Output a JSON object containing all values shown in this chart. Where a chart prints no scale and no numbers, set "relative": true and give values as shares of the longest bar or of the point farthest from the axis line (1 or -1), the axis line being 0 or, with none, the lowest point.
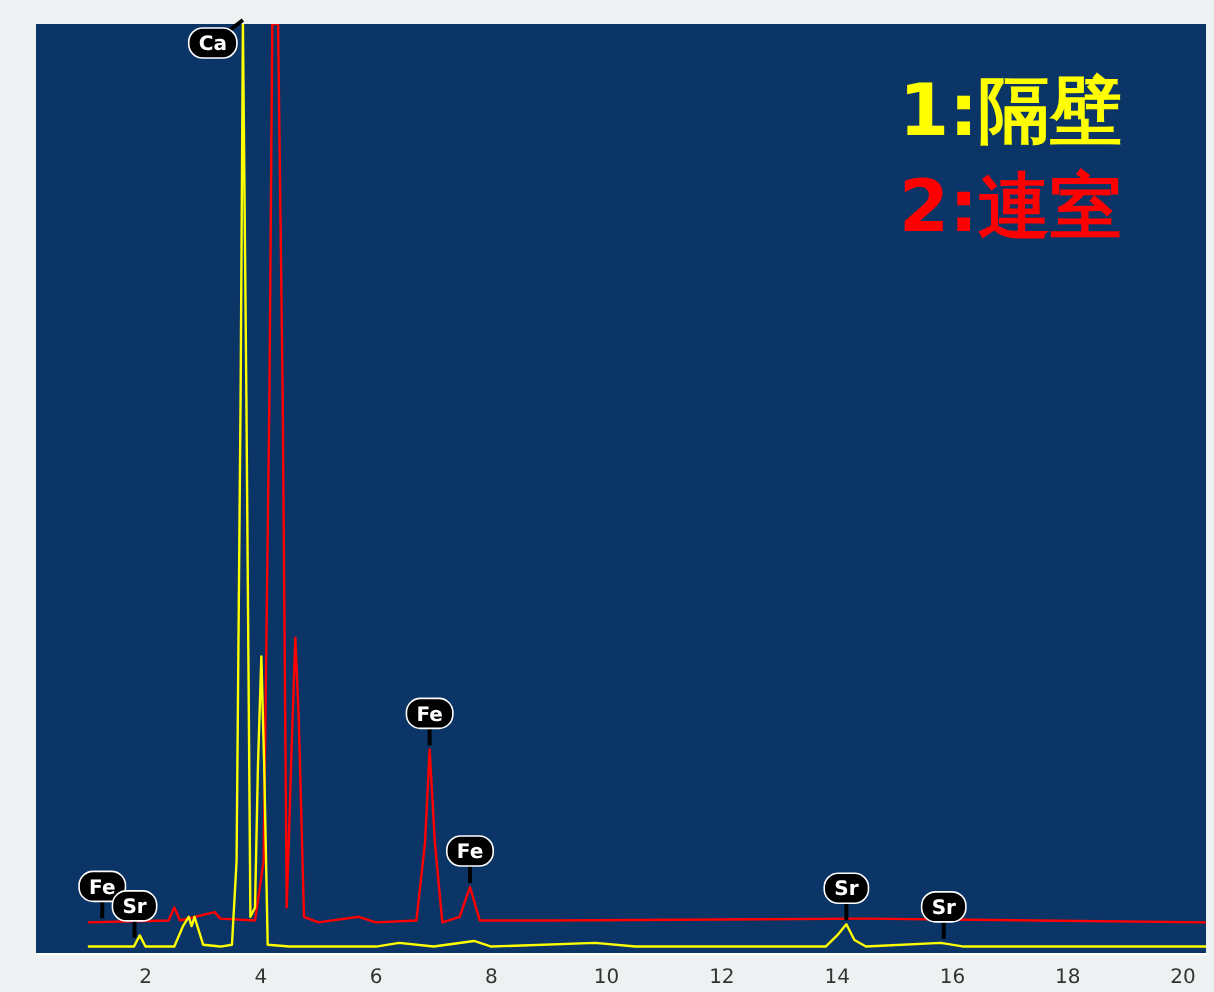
{
  "chart_data": {
    "type": "line",
    "relative": true,
    "legend": "top right",
    "grid": false,
    "marker": "none",
    "xlim": [
      0.1,
      20.4
    ],
    "xticks": [
      2,
      4,
      6,
      8,
      10,
      12,
      14,
      16,
      18,
      20
    ],
    "series": [
      {
        "name": "1:隔壁",
        "color": "#ffff00",
        "x": [
          1.0,
          1.8,
          1.9,
          2.0,
          2.5,
          2.65,
          2.75,
          2.8,
          2.85,
          3.0,
          3.3,
          3.5,
          3.58,
          3.65,
          3.69,
          3.75,
          3.82,
          3.9,
          3.95,
          4.01,
          4.06,
          4.12,
          4.5,
          6.0,
          6.4,
          7.0,
          7.7,
          8.0,
          9.8,
          10.5,
          13.8,
          14.0,
          14.16,
          14.3,
          14.5,
          15.8,
          16.2,
          20.4
        ],
        "values": [
          0.008,
          0.008,
          0.02,
          0.008,
          0.008,
          0.03,
          0.04,
          0.03,
          0.04,
          0.01,
          0.008,
          0.01,
          0.1,
          0.6,
          1.0,
          0.6,
          0.04,
          0.05,
          0.2,
          0.32,
          0.2,
          0.01,
          0.008,
          0.008,
          0.012,
          0.008,
          0.014,
          0.008,
          0.012,
          0.008,
          0.008,
          0.02,
          0.032,
          0.015,
          0.008,
          0.012,
          0.008,
          0.008
        ]
      },
      {
        "name": "2:連室",
        "color": "#ff0000",
        "x": [
          1.0,
          2.4,
          2.5,
          2.6,
          3.2,
          3.3,
          3.9,
          4.05,
          4.15,
          4.2,
          4.3,
          4.38,
          4.45,
          4.55,
          4.6,
          4.66,
          4.75,
          5.0,
          5.7,
          6.0,
          6.7,
          6.85,
          6.93,
          7.02,
          7.15,
          7.45,
          7.63,
          7.8,
          9.0,
          14.5,
          20.4
        ],
        "values": [
          0.034,
          0.036,
          0.05,
          0.036,
          0.045,
          0.038,
          0.036,
          0.1,
          0.6,
          1.0,
          1.0,
          0.6,
          0.05,
          0.25,
          0.34,
          0.25,
          0.04,
          0.034,
          0.04,
          0.034,
          0.036,
          0.12,
          0.22,
          0.12,
          0.034,
          0.04,
          0.072,
          0.036,
          0.036,
          0.038,
          0.034
        ]
      }
    ],
    "annotations": [
      {
        "text": "Fe",
        "x": 1.25,
        "y": 0.034
      },
      {
        "text": "Sr",
        "x": 1.81,
        "y": 0.013
      },
      {
        "text": "Ca",
        "x": 3.69,
        "y": 1.0
      },
      {
        "text": "Fe",
        "x": 6.93,
        "y": 0.22
      },
      {
        "text": "Fe",
        "x": 7.63,
        "y": 0.072
      },
      {
        "text": "Sr",
        "x": 14.16,
        "y": 0.032
      },
      {
        "text": "Sr",
        "x": 15.85,
        "y": 0.012
      }
    ]
  }
}
